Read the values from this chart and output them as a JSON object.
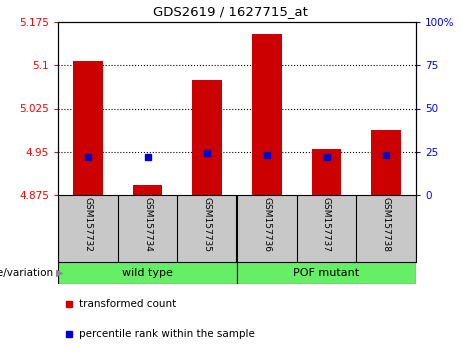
{
  "title": "GDS2619 / 1627715_at",
  "samples": [
    "GSM157732",
    "GSM157734",
    "GSM157735",
    "GSM157736",
    "GSM157737",
    "GSM157738"
  ],
  "transformed_counts": [
    5.107,
    4.893,
    5.075,
    5.155,
    4.955,
    4.988
  ],
  "percentile_ranks": [
    22,
    22,
    24,
    23,
    22,
    23
  ],
  "ylim_left": [
    4.875,
    5.175
  ],
  "ylim_right": [
    0,
    100
  ],
  "yticks_left": [
    4.875,
    4.95,
    5.025,
    5.1,
    5.175
  ],
  "yticks_right": [
    0,
    25,
    50,
    75,
    100
  ],
  "ytick_labels_left": [
    "4.875",
    "4.95",
    "5.025",
    "5.1",
    "5.175"
  ],
  "ytick_labels_right": [
    "0",
    "25",
    "50",
    "75",
    "100%"
  ],
  "baseline": 4.875,
  "bar_color": "#cc0000",
  "percentile_color": "#0000cc",
  "background_color": "#ffffff",
  "tick_area_color": "#c8c8c8",
  "group_color": "#66ee66",
  "genotype_label": "genotype/variation",
  "legend_items": [
    {
      "label": "transformed count",
      "color": "#cc0000"
    },
    {
      "label": "percentile rank within the sample",
      "color": "#0000cc"
    }
  ],
  "bar_width": 0.5,
  "dotted_grid_lines": [
    4.95,
    5.025,
    5.1
  ],
  "groups": [
    {
      "label": "wild type",
      "start": 0,
      "end": 3
    },
    {
      "label": "POF mutant",
      "start": 3,
      "end": 6
    }
  ]
}
